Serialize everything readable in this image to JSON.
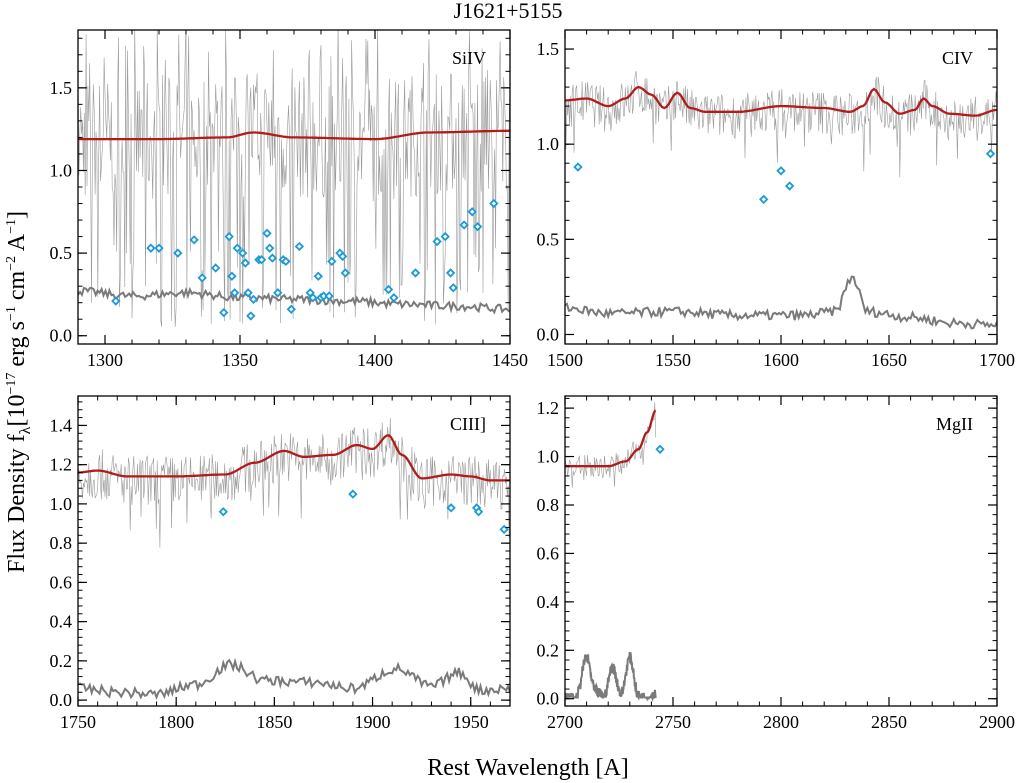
{
  "chart_data": {
    "type": "line",
    "title": "J1621+5155",
    "xlabel": "Rest Wavelength [A]",
    "ylabel_main": "Flux Density f",
    "ylabel_sub": "λ",
    "ylabel_units": "[10",
    "ylabel_exp": "−17",
    "ylabel_erg": " erg s",
    "ylabel_m1": "−1",
    "ylabel_cm": " cm",
    "ylabel_m2": "−2",
    "ylabel_A": " A",
    "ylabel_m1b": "−1",
    "ylabel_close": "]",
    "colors": {
      "spectrum": "#9a9a9a",
      "error": "#7a7a7a",
      "model": "#b01c1c",
      "absorbers": "#1a9ad6"
    },
    "grid": false,
    "legend": "none",
    "panels": [
      {
        "label": "SiIV",
        "xlim": [
          1290,
          1450
        ],
        "ylim": [
          -0.05,
          1.85
        ],
        "xticks": [
          1300,
          1350,
          1400,
          1450
        ],
        "xtick_labels": [
          "1300",
          "1350",
          "1400",
          "1450"
        ],
        "yticks": [
          0.0,
          0.5,
          1.0,
          1.5
        ],
        "ytick_labels": [
          "0.0",
          "0.5",
          "1.0",
          "1.5"
        ],
        "spectrum_x_range": [
          1290,
          1450
        ],
        "spectrum_base": 1.05,
        "spectrum_noise": 0.38,
        "spectrum_deep_lines": true,
        "model": {
          "x": [
            1290,
            1320,
            1345,
            1355,
            1370,
            1400,
            1420,
            1450
          ],
          "y": [
            1.19,
            1.19,
            1.2,
            1.23,
            1.2,
            1.19,
            1.23,
            1.24
          ]
        },
        "error": {
          "x": [
            1290,
            1310,
            1330,
            1350,
            1370,
            1390,
            1410,
            1430,
            1450
          ],
          "y": [
            0.27,
            0.24,
            0.26,
            0.23,
            0.22,
            0.21,
            0.19,
            0.18,
            0.16
          ]
        },
        "absorbers": {
          "x": [
            1304,
            1317,
            1320,
            1327,
            1333,
            1336,
            1341,
            1344,
            1346,
            1347,
            1348,
            1349,
            1351,
            1352,
            1353,
            1354,
            1355,
            1357,
            1358,
            1360,
            1361,
            1362,
            1364,
            1366,
            1367,
            1369,
            1372,
            1376,
            1377,
            1379,
            1380,
            1381,
            1383,
            1384,
            1387,
            1388,
            1389,
            1405,
            1407,
            1415,
            1423,
            1426,
            1428,
            1429,
            1433,
            1436,
            1438,
            1444
          ],
          "y": [
            0.21,
            0.53,
            0.53,
            0.5,
            0.58,
            0.35,
            0.41,
            0.14,
            0.6,
            0.36,
            0.26,
            0.53,
            0.5,
            0.44,
            0.26,
            0.12,
            0.22,
            0.46,
            0.46,
            0.62,
            0.53,
            0.47,
            0.26,
            0.46,
            0.45,
            0.16,
            0.54,
            0.26,
            0.23,
            0.36,
            0.23,
            0.24,
            0.24,
            0.45,
            0.5,
            0.48,
            0.38,
            0.28,
            0.23,
            0.38,
            0.57,
            0.6,
            0.38,
            0.29,
            0.67,
            0.75,
            0.66,
            0.8
          ]
        }
      },
      {
        "label": "CIV",
        "xlim": [
          1500,
          1700
        ],
        "ylim": [
          -0.05,
          1.6
        ],
        "xticks": [
          1500,
          1550,
          1600,
          1650,
          1700
        ],
        "xtick_labels": [
          "1500",
          "1550",
          "1600",
          "1650",
          "1700"
        ],
        "yticks": [
          0.0,
          0.5,
          1.0,
          1.5
        ],
        "ytick_labels": [
          "0.0",
          "0.5",
          "1.0",
          "1.5"
        ],
        "spectrum_x_range": [
          1500,
          1700
        ],
        "spectrum_base": 1.17,
        "spectrum_noise": 0.12,
        "spectrum_deep_lines": false,
        "model": {
          "x": [
            1500,
            1510,
            1520,
            1528,
            1534,
            1540,
            1546,
            1552,
            1558,
            1565,
            1580,
            1600,
            1620,
            1632,
            1638,
            1643,
            1648,
            1655,
            1662,
            1666,
            1670,
            1678,
            1690,
            1700
          ],
          "y": [
            1.23,
            1.24,
            1.2,
            1.24,
            1.3,
            1.26,
            1.19,
            1.27,
            1.19,
            1.17,
            1.17,
            1.2,
            1.19,
            1.17,
            1.2,
            1.29,
            1.22,
            1.16,
            1.18,
            1.24,
            1.2,
            1.16,
            1.15,
            1.18
          ]
        },
        "error": {
          "x": [
            1500,
            1520,
            1550,
            1580,
            1610,
            1625,
            1633,
            1640,
            1660,
            1680,
            1700
          ],
          "y": [
            0.14,
            0.11,
            0.12,
            0.1,
            0.1,
            0.12,
            0.3,
            0.12,
            0.09,
            0.06,
            0.05
          ]
        },
        "absorbers": {
          "x": [
            1506,
            1592,
            1600,
            1604,
            1697
          ],
          "y": [
            0.88,
            0.71,
            0.86,
            0.78,
            0.95
          ]
        }
      },
      {
        "label": "CIII]",
        "xlim": [
          1750,
          1970
        ],
        "ylim": [
          -0.03,
          1.55
        ],
        "xticks": [
          1750,
          1800,
          1850,
          1900,
          1950
        ],
        "xtick_labels": [
          "1750",
          "1800",
          "1850",
          "1900",
          "1950"
        ],
        "yticks": [
          0.0,
          0.2,
          0.4,
          0.6,
          0.8,
          1.0,
          1.2,
          1.4
        ],
        "ytick_labels": [
          "0.0",
          "0.2",
          "0.4",
          "0.6",
          "0.8",
          "1.0",
          "1.2",
          "1.4"
        ],
        "spectrum_x_range": [
          1750,
          1970
        ],
        "spectrum_base": 1.2,
        "spectrum_noise": 0.13,
        "spectrum_deep_lines": false,
        "model": {
          "x": [
            1750,
            1760,
            1775,
            1800,
            1825,
            1840,
            1855,
            1865,
            1880,
            1892,
            1900,
            1908,
            1915,
            1925,
            1940,
            1950,
            1960,
            1970
          ],
          "y": [
            1.16,
            1.17,
            1.14,
            1.14,
            1.15,
            1.21,
            1.27,
            1.24,
            1.25,
            1.3,
            1.28,
            1.35,
            1.25,
            1.13,
            1.15,
            1.14,
            1.12,
            1.12
          ]
        },
        "error": {
          "x": [
            1750,
            1770,
            1790,
            1810,
            1828,
            1845,
            1870,
            1890,
            1912,
            1930,
            1944,
            1955,
            1970
          ],
          "y": [
            0.06,
            0.04,
            0.03,
            0.08,
            0.18,
            0.1,
            0.09,
            0.06,
            0.16,
            0.07,
            0.14,
            0.05,
            0.06
          ]
        },
        "absorbers": {
          "x": [
            1824,
            1890,
            1940,
            1953,
            1954,
            1967
          ],
          "y": [
            0.96,
            1.05,
            0.98,
            0.98,
            0.96,
            0.87
          ]
        }
      },
      {
        "label": "MgII",
        "xlim": [
          2700,
          2900
        ],
        "ylim": [
          -0.03,
          1.25
        ],
        "xticks": [
          2700,
          2750,
          2800,
          2850,
          2900
        ],
        "xtick_labels": [
          "2700",
          "2750",
          "2800",
          "2850",
          "2900"
        ],
        "yticks": [
          0.0,
          0.2,
          0.4,
          0.6,
          0.8,
          1.0,
          1.2
        ],
        "ytick_labels": [
          "0.0",
          "0.2",
          "0.4",
          "0.6",
          "0.8",
          "1.0",
          "1.2"
        ],
        "spectrum_x_range": [
          2700,
          2742
        ],
        "spectrum_base": 0.97,
        "spectrum_noise": 0.05,
        "spectrum_deep_lines": false,
        "model": {
          "x": [
            2700,
            2720,
            2728,
            2734,
            2738,
            2742
          ],
          "y": [
            0.96,
            0.96,
            0.98,
            1.03,
            1.1,
            1.19
          ]
        },
        "error": {
          "x": [
            2700,
            2705,
            2710,
            2714,
            2718,
            2722,
            2726,
            2730,
            2734,
            2738,
            2742
          ],
          "y": [
            0.0,
            0.0,
            0.17,
            0.03,
            0.01,
            0.13,
            0.02,
            0.17,
            0.01,
            0.0,
            0.02
          ]
        },
        "absorbers": {
          "x": [
            2744
          ],
          "y": [
            1.03
          ]
        }
      }
    ]
  }
}
